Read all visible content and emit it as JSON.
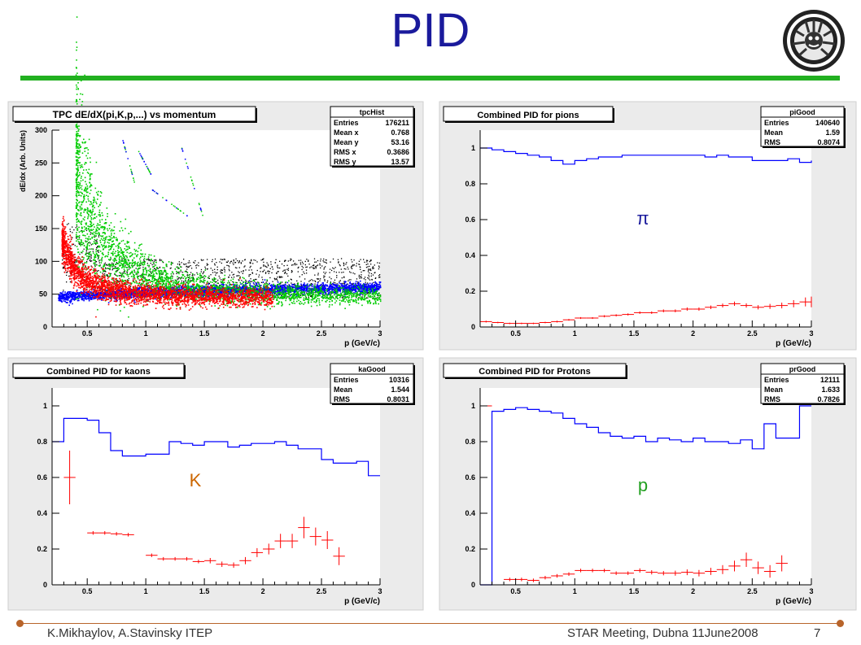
{
  "slide": {
    "title": "PID",
    "footer_left": "K.Mikhaylov, A.Stavinsky ITEP",
    "footer_right": "STAR Meeting, Dubna 11June2008",
    "page_number": "7"
  },
  "colors": {
    "title": "#1a1a9c",
    "rule": "#22b020",
    "footer": "#b8642a",
    "pion": "#0000ff",
    "kaon": "#ff0000",
    "proton": "#00cc00",
    "other": "#000000"
  },
  "chart_data": [
    {
      "type": "scatter",
      "title": "TPC dE/dX(pi,K,p,...) vs momentum",
      "xlabel": "p (GeV/c)",
      "ylabel": "dE/dx (Arb. Units)",
      "xlim": [
        0.2,
        3
      ],
      "ylim": [
        0,
        300
      ],
      "xticks": [
        0.5,
        1,
        1.5,
        2,
        2.5,
        3
      ],
      "yticks": [
        0,
        50,
        100,
        150,
        200,
        250,
        300
      ],
      "stats": {
        "name": "tpcHist",
        "rows": [
          [
            "Entries",
            "176211"
          ],
          [
            "Mean x",
            "0.768"
          ],
          [
            "Mean y",
            "53.16"
          ],
          [
            "RMS x",
            "0.3686"
          ],
          [
            "RMS y",
            "13.57"
          ]
        ]
      }
    },
    {
      "type": "line",
      "title": "Combined PID for pions",
      "xlabel": "p (GeV/c)",
      "xlim": [
        0.2,
        3
      ],
      "ylim": [
        0,
        1.1
      ],
      "xticks": [
        0.5,
        1,
        1.5,
        2,
        2.5,
        3
      ],
      "yticks": [
        0,
        0.2,
        0.4,
        0.6,
        0.8,
        1
      ],
      "annotation": "π",
      "stats": {
        "name": "piGood",
        "rows": [
          [
            "Entries",
            "140640"
          ],
          [
            "Mean",
            "1.59"
          ],
          [
            "RMS",
            "0.8074"
          ]
        ]
      },
      "x": [
        0.2,
        0.3,
        0.4,
        0.5,
        0.6,
        0.7,
        0.8,
        0.9,
        1.0,
        1.1,
        1.2,
        1.3,
        1.4,
        1.5,
        1.6,
        1.7,
        1.8,
        1.9,
        2.0,
        2.1,
        2.2,
        2.3,
        2.4,
        2.5,
        2.6,
        2.7,
        2.8,
        2.9,
        3.0
      ],
      "series": [
        {
          "values": [
            1.0,
            0.99,
            0.98,
            0.97,
            0.96,
            0.95,
            0.93,
            0.91,
            0.93,
            0.94,
            0.95,
            0.95,
            0.96,
            0.96,
            0.96,
            0.96,
            0.96,
            0.96,
            0.96,
            0.95,
            0.96,
            0.95,
            0.95,
            0.93,
            0.93,
            0.93,
            0.94,
            0.92,
            0.93
          ]
        },
        {
          "values": [
            0.03,
            0.025,
            0.02,
            0.02,
            0.02,
            0.025,
            0.03,
            0.04,
            0.05,
            0.05,
            0.06,
            0.065,
            0.07,
            0.08,
            0.08,
            0.09,
            0.09,
            0.1,
            0.1,
            0.11,
            0.12,
            0.13,
            0.12,
            0.11,
            0.115,
            0.12,
            0.13,
            0.14,
            0.14
          ],
          "errors": [
            0.005,
            0.004,
            0.004,
            0.004,
            0.004,
            0.004,
            0.005,
            0.005,
            0.005,
            0.005,
            0.006,
            0.006,
            0.006,
            0.007,
            0.007,
            0.008,
            0.008,
            0.009,
            0.009,
            0.01,
            0.011,
            0.012,
            0.012,
            0.012,
            0.014,
            0.016,
            0.02,
            0.025,
            0.03
          ]
        }
      ]
    },
    {
      "type": "line",
      "title": "Combined PID for kaons",
      "xlabel": "p (GeV/c)",
      "xlim": [
        0.2,
        3
      ],
      "ylim": [
        0,
        1.1
      ],
      "xticks": [
        0.5,
        1,
        1.5,
        2,
        2.5,
        3
      ],
      "yticks": [
        0,
        0.2,
        0.4,
        0.6,
        0.8,
        1
      ],
      "annotation": "K",
      "stats": {
        "name": "kaGood",
        "rows": [
          [
            "Entries",
            "10316"
          ],
          [
            "Mean",
            "1.544"
          ],
          [
            "RMS",
            "0.8031"
          ]
        ]
      },
      "x": [
        0.2,
        0.3,
        0.4,
        0.5,
        0.6,
        0.7,
        0.8,
        0.9,
        1.0,
        1.1,
        1.2,
        1.3,
        1.4,
        1.5,
        1.6,
        1.7,
        1.8,
        1.9,
        2.0,
        2.1,
        2.2,
        2.3,
        2.4,
        2.5,
        2.6,
        2.7,
        2.8,
        2.9,
        3.0
      ],
      "series": [
        {
          "values": [
            0.8,
            0.93,
            0.93,
            0.92,
            0.85,
            0.75,
            0.72,
            0.72,
            0.73,
            0.73,
            0.8,
            0.79,
            0.78,
            0.8,
            0.8,
            0.77,
            0.78,
            0.79,
            0.79,
            0.8,
            0.78,
            0.76,
            0.76,
            0.7,
            0.68,
            0.68,
            0.69,
            0.61,
            0.61
          ]
        },
        {
          "values": [
            null,
            0.6,
            null,
            0.29,
            0.29,
            0.285,
            0.28,
            null,
            0.165,
            0.145,
            0.145,
            0.145,
            0.13,
            0.135,
            0.115,
            0.11,
            0.135,
            0.18,
            0.2,
            0.245,
            0.245,
            0.32,
            0.27,
            0.25,
            0.16,
            null,
            null,
            null,
            null
          ],
          "errors": [
            0,
            0.15,
            0,
            0.01,
            0.01,
            0.01,
            0.01,
            0,
            0.01,
            0.01,
            0.01,
            0.01,
            0.01,
            0.015,
            0.015,
            0.015,
            0.02,
            0.025,
            0.03,
            0.04,
            0.04,
            0.06,
            0.05,
            0.05,
            0.05,
            0,
            0,
            0,
            0
          ]
        }
      ]
    },
    {
      "type": "line",
      "title": "Combined PID for Protons",
      "xlabel": "p (GeV/c)",
      "xlim": [
        0.2,
        3
      ],
      "ylim": [
        0,
        1.1
      ],
      "xticks": [
        0.5,
        1,
        1.5,
        2,
        2.5,
        3
      ],
      "yticks": [
        0,
        0.2,
        0.4,
        0.6,
        0.8,
        1
      ],
      "annotation": "p",
      "stats": {
        "name": "prGood",
        "rows": [
          [
            "Entries",
            "12111"
          ],
          [
            "Mean",
            "1.633"
          ],
          [
            "RMS",
            "0.7826"
          ]
        ]
      },
      "x": [
        0.2,
        0.3,
        0.4,
        0.5,
        0.6,
        0.7,
        0.8,
        0.9,
        1.0,
        1.1,
        1.2,
        1.3,
        1.4,
        1.5,
        1.6,
        1.7,
        1.8,
        1.9,
        2.0,
        2.1,
        2.2,
        2.3,
        2.4,
        2.5,
        2.6,
        2.7,
        2.8,
        2.9,
        3.0
      ],
      "series": [
        {
          "values": [
            0,
            0.97,
            0.98,
            0.99,
            0.98,
            0.97,
            0.96,
            0.93,
            0.9,
            0.88,
            0.85,
            0.83,
            0.82,
            0.83,
            0.8,
            0.82,
            0.81,
            0.8,
            0.82,
            0.8,
            0.8,
            0.79,
            0.81,
            0.76,
            0.9,
            0.82,
            0.82,
            1.0,
            1.0
          ]
        },
        {
          "values": [
            1.0,
            null,
            0.03,
            0.03,
            0.025,
            0.04,
            0.05,
            0.06,
            0.08,
            0.08,
            0.08,
            0.065,
            0.065,
            0.08,
            0.07,
            0.065,
            0.065,
            0.07,
            0.065,
            0.075,
            0.085,
            0.105,
            0.14,
            0.095,
            0.075,
            0.12,
            null,
            null,
            null
          ],
          "errors": [
            0,
            0,
            0.01,
            0.01,
            0.01,
            0.01,
            0.01,
            0.01,
            0.01,
            0.01,
            0.01,
            0.01,
            0.01,
            0.012,
            0.012,
            0.012,
            0.014,
            0.016,
            0.018,
            0.02,
            0.025,
            0.03,
            0.04,
            0.035,
            0.035,
            0.045,
            0,
            0,
            0
          ]
        }
      ]
    }
  ]
}
